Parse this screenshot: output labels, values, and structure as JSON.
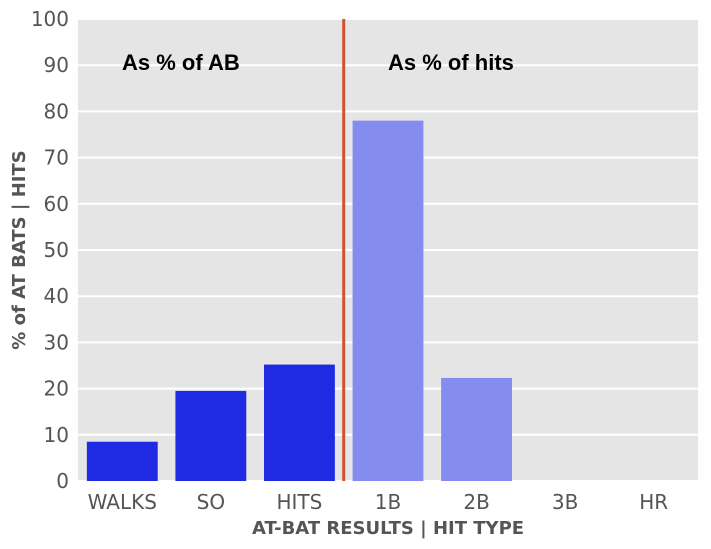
{
  "chart_data": {
    "type": "bar",
    "categories": [
      "WALKS",
      "SO",
      "HITS",
      "1B",
      "2B",
      "3B",
      "HR"
    ],
    "values": [
      8.5,
      19.5,
      25.2,
      78.0,
      22.3,
      0,
      0
    ],
    "group_colors": [
      "#1f2ae3",
      "#1f2ae3",
      "#1f2ae3",
      "#858cf0",
      "#858cf0",
      "#858cf0",
      "#858cf0"
    ],
    "divider_color": "#d4502f",
    "plot_background": "#e5e5e5",
    "grid": true,
    "xlabel": "AT-BAT RESULTS | HIT TYPE",
    "ylabel": "% of AT BATS | HITS",
    "ylim": [
      0,
      100
    ],
    "yticks": [
      0,
      10,
      20,
      30,
      40,
      50,
      60,
      70,
      80,
      90,
      100
    ],
    "annotations": [
      "As % of AB",
      "As % of hits"
    ]
  }
}
